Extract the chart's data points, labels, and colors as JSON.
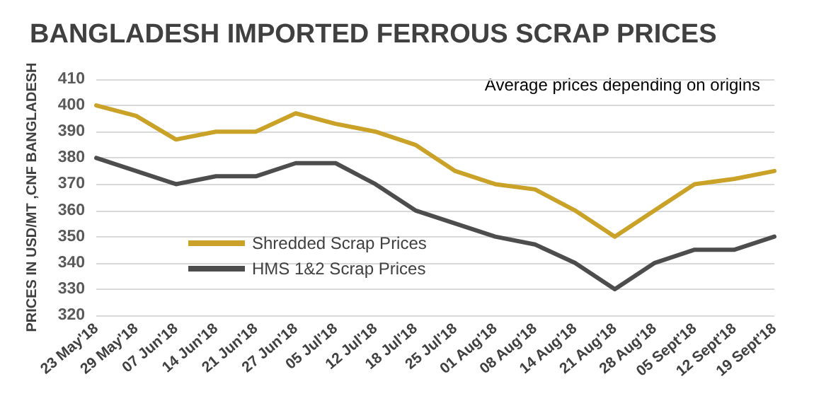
{
  "chart_data": {
    "type": "line",
    "title": "BANGLADESH IMPORTED FERROUS SCRAP PRICES",
    "ylabel": "PRICES IN USD/MT ,CNF BANGLADESH",
    "annotations": [
      "Average prices depending on origins"
    ],
    "categories": [
      "23 May'18",
      "29 May'18",
      "07 Jun'18",
      "14 Jun'18",
      "21 Jun'18",
      "27 Jun'18",
      "05 Jul'18",
      "12 Jul'18",
      "18 Jul'18",
      "25 Jul'18",
      "01 Aug'18",
      "08 Aug'18",
      "14 Aug'18",
      "21 Aug'18",
      "28 Aug'18",
      "05 Sept'18",
      "12 Sept'18",
      "19 Sept'18"
    ],
    "series": [
      {
        "name": "Shredded Scrap Prices",
        "color": "#c9a227",
        "values": [
          400,
          396,
          387,
          390,
          390,
          397,
          393,
          390,
          385,
          375,
          370,
          368,
          360,
          350,
          360,
          370,
          372,
          375
        ]
      },
      {
        "name": "HMS 1&2 Scrap Prices",
        "color": "#4d4d4d",
        "values": [
          380,
          375,
          370,
          373,
          373,
          378,
          378,
          370,
          360,
          355,
          350,
          347,
          340,
          330,
          340,
          345,
          345,
          350
        ]
      }
    ],
    "ylim": [
      320,
      410
    ],
    "yticks": [
      320,
      330,
      340,
      350,
      360,
      370,
      380,
      390,
      400,
      410
    ],
    "grid": "y",
    "legend": "bottom left",
    "marker": "none",
    "line_style": "solid"
  }
}
